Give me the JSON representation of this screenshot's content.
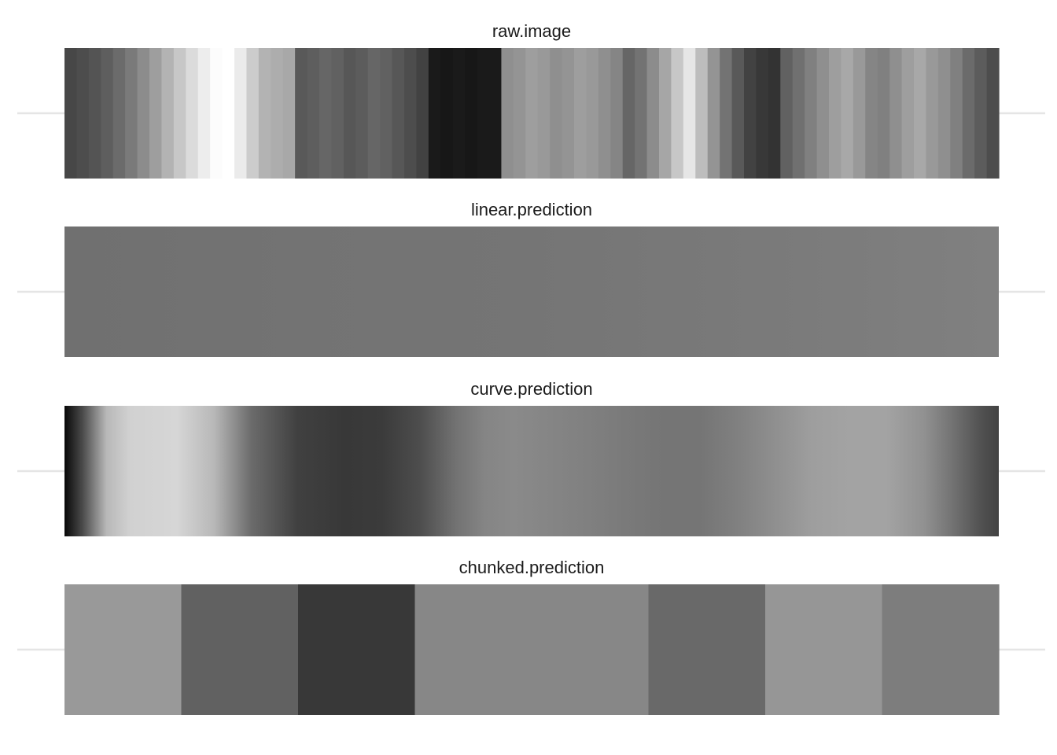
{
  "chart_data": {
    "type": "heatmap",
    "colormap": "grayscale",
    "value_range": [
      0,
      1
    ],
    "legend": "none",
    "grid": {
      "horizontal_midlines": true,
      "color": "#e5e5e5"
    },
    "panels": [
      {
        "title": "raw.image",
        "mode": "stripes",
        "values": [
          0.28,
          0.3,
          0.33,
          0.37,
          0.42,
          0.48,
          0.55,
          0.62,
          0.7,
          0.78,
          0.86,
          0.93,
          0.99,
          1.0,
          0.92,
          0.8,
          0.7,
          0.68,
          0.66,
          0.35,
          0.37,
          0.4,
          0.38,
          0.34,
          0.36,
          0.4,
          0.38,
          0.34,
          0.3,
          0.26,
          0.1,
          0.09,
          0.1,
          0.09,
          0.1,
          0.1,
          0.56,
          0.58,
          0.62,
          0.6,
          0.56,
          0.58,
          0.62,
          0.6,
          0.56,
          0.52,
          0.4,
          0.45,
          0.55,
          0.65,
          0.78,
          0.9,
          0.74,
          0.58,
          0.45,
          0.35,
          0.26,
          0.22,
          0.2,
          0.38,
          0.44,
          0.5,
          0.56,
          0.62,
          0.66,
          0.6,
          0.52,
          0.5,
          0.56,
          0.62,
          0.66,
          0.6,
          0.56,
          0.5,
          0.42,
          0.36,
          0.3
        ]
      },
      {
        "title": "linear.prediction",
        "mode": "gradient",
        "stops": [
          [
            0,
            0.44
          ],
          [
            0.25,
            0.45
          ],
          [
            0.5,
            0.46
          ],
          [
            0.75,
            0.48
          ],
          [
            1,
            0.5
          ]
        ]
      },
      {
        "title": "curve.prediction",
        "mode": "gradient",
        "stops": [
          [
            0,
            0.03
          ],
          [
            0.02,
            0.3
          ],
          [
            0.045,
            0.72
          ],
          [
            0.07,
            0.82
          ],
          [
            0.12,
            0.84
          ],
          [
            0.16,
            0.72
          ],
          [
            0.2,
            0.42
          ],
          [
            0.25,
            0.25
          ],
          [
            0.3,
            0.22
          ],
          [
            0.34,
            0.23
          ],
          [
            0.38,
            0.3
          ],
          [
            0.42,
            0.45
          ],
          [
            0.45,
            0.52
          ],
          [
            0.48,
            0.54
          ],
          [
            0.52,
            0.52
          ],
          [
            0.56,
            0.5
          ],
          [
            0.6,
            0.48
          ],
          [
            0.64,
            0.46
          ],
          [
            0.68,
            0.46
          ],
          [
            0.72,
            0.5
          ],
          [
            0.76,
            0.56
          ],
          [
            0.8,
            0.62
          ],
          [
            0.84,
            0.64
          ],
          [
            0.88,
            0.64
          ],
          [
            0.92,
            0.57
          ],
          [
            0.95,
            0.45
          ],
          [
            0.98,
            0.32
          ],
          [
            1,
            0.26
          ]
        ]
      },
      {
        "title": "chunked.prediction",
        "mode": "blocks",
        "values": [
          0.6,
          0.38,
          0.22,
          0.53,
          0.53,
          0.41,
          0.59,
          0.49
        ]
      }
    ]
  }
}
